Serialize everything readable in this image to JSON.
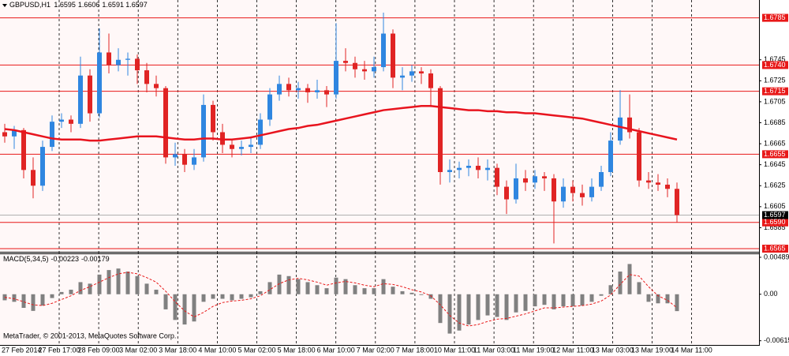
{
  "chart_data": [
    {
      "type": "candlestick",
      "title": "GBPUSD,H1",
      "header_values": [
        1.6595,
        1.6606,
        1.6591,
        1.6597
      ],
      "annotation": "MetaTrader, © 2001-2013, MetaQuotes Software Corp.",
      "time_labels": [
        "27 Feb 2014",
        "27 Feb 17:00",
        "28 Feb 09:00",
        "3 Mar 02:00",
        "3 Mar 18:00",
        "4 Mar 10:00",
        "5 Mar 02:00",
        "5 Mar 18:00",
        "6 Mar 10:00",
        "7 Mar 02:00",
        "7 Mar 18:00",
        "10 Mar 11:00",
        "11 Mar 03:00",
        "11 Mar 19:00",
        "12 Mar 11:00",
        "13 Mar 03:00",
        "13 Mar 19:00",
        "14 Mar 11:00"
      ],
      "open": [
        1.6676,
        1.6672,
        1.6678,
        1.664,
        1.6625,
        1.6662,
        1.6686,
        1.6688,
        1.6684,
        1.673,
        1.6694,
        1.6752,
        1.674,
        1.6745,
        1.6746,
        1.6735,
        1.6722,
        1.6718,
        1.6652,
        1.6655,
        1.6645,
        1.6652,
        1.6702,
        1.6676,
        1.6664,
        1.666,
        1.6662,
        1.6664,
        1.6688,
        1.6712,
        1.6722,
        1.6716,
        1.6718,
        1.6714,
        1.6716,
        1.6712,
        1.6744,
        1.6742,
        1.6736,
        1.6734,
        1.6738,
        1.677,
        1.6728,
        1.673,
        1.6734,
        1.6732,
        1.6718,
        1.6638,
        1.664,
        1.6642,
        1.6644,
        1.664,
        1.6642,
        1.6624,
        1.6612,
        1.6632,
        1.6628,
        1.6634,
        1.6632,
        1.661,
        1.6624,
        1.6618,
        1.6614,
        1.6624,
        1.6638,
        1.6668,
        1.669,
        1.6676,
        1.663,
        1.6628,
        1.6626,
        1.6622
      ],
      "high": [
        1.6684,
        1.6682,
        1.668,
        1.6652,
        1.6668,
        1.6692,
        1.6694,
        1.6692,
        1.6748,
        1.6736,
        1.6775,
        1.677,
        1.6756,
        1.6752,
        1.675,
        1.6742,
        1.673,
        1.672,
        1.6666,
        1.666,
        1.666,
        1.6712,
        1.6706,
        1.6684,
        1.667,
        1.6668,
        1.6672,
        1.6694,
        1.6718,
        1.673,
        1.6728,
        1.6724,
        1.6722,
        1.6726,
        1.672,
        1.678,
        1.6756,
        1.6748,
        1.6744,
        1.6748,
        1.679,
        1.6774,
        1.6738,
        1.674,
        1.6738,
        1.6736,
        1.672,
        1.665,
        1.6648,
        1.665,
        1.6652,
        1.665,
        1.6646,
        1.663,
        1.6646,
        1.664,
        1.664,
        1.6638,
        1.6636,
        1.6632,
        1.663,
        1.6626,
        1.6632,
        1.6644,
        1.6676,
        1.6716,
        1.6712,
        1.668,
        1.6638,
        1.6636,
        1.6632,
        1.6628
      ],
      "low": [
        1.6666,
        1.666,
        1.6632,
        1.6613,
        1.662,
        1.6658,
        1.668,
        1.6676,
        1.668,
        1.6686,
        1.669,
        1.6732,
        1.6734,
        1.673,
        1.6722,
        1.6714,
        1.671,
        1.6646,
        1.6644,
        1.6638,
        1.664,
        1.6648,
        1.6668,
        1.6656,
        1.6652,
        1.6654,
        1.6656,
        1.666,
        1.6682,
        1.6706,
        1.671,
        1.6708,
        1.6704,
        1.6708,
        1.67,
        1.6708,
        1.6734,
        1.6728,
        1.6726,
        1.6728,
        1.6734,
        1.6718,
        1.6716,
        1.6724,
        1.6722,
        1.67,
        1.6626,
        1.6628,
        1.6632,
        1.6634,
        1.6632,
        1.663,
        1.6616,
        1.6598,
        1.6608,
        1.662,
        1.6622,
        1.662,
        1.657,
        1.6604,
        1.661,
        1.6606,
        1.661,
        1.662,
        1.6634,
        1.6664,
        1.667,
        1.6624,
        1.6622,
        1.662,
        1.6614,
        1.659
      ],
      "close": [
        1.6672,
        1.6678,
        1.664,
        1.6625,
        1.6662,
        1.6686,
        1.6688,
        1.6684,
        1.673,
        1.6694,
        1.6752,
        1.674,
        1.6745,
        1.6746,
        1.6735,
        1.6722,
        1.6718,
        1.6652,
        1.6655,
        1.6645,
        1.6652,
        1.6702,
        1.6676,
        1.6664,
        1.666,
        1.6662,
        1.6664,
        1.6688,
        1.6712,
        1.6722,
        1.6716,
        1.6718,
        1.6714,
        1.6716,
        1.6712,
        1.6744,
        1.6742,
        1.6736,
        1.6734,
        1.6738,
        1.677,
        1.6728,
        1.673,
        1.6734,
        1.6732,
        1.6718,
        1.6638,
        1.664,
        1.6642,
        1.6644,
        1.664,
        1.6642,
        1.6624,
        1.6612,
        1.6632,
        1.6628,
        1.6634,
        1.6632,
        1.661,
        1.6624,
        1.6618,
        1.6614,
        1.6624,
        1.6638,
        1.6668,
        1.669,
        1.6676,
        1.663,
        1.6628,
        1.6626,
        1.6622,
        1.6597
      ],
      "up_color": "#2f86e0",
      "down_color": "#e02424",
      "moving_average": {
        "color": "#e8141e",
        "values": [
          1.6679,
          1.6678,
          1.6676,
          1.6674,
          1.6672,
          1.667,
          1.6669,
          1.6669,
          1.6669,
          1.6668,
          1.6668,
          1.6669,
          1.667,
          1.6671,
          1.6672,
          1.6672,
          1.6672,
          1.6671,
          1.667,
          1.6669,
          1.6669,
          1.667,
          1.667,
          1.6669,
          1.6669,
          1.667,
          1.6671,
          1.6673,
          1.6675,
          1.6677,
          1.6679,
          1.668,
          1.6682,
          1.6683,
          1.6685,
          1.6687,
          1.6689,
          1.6691,
          1.6693,
          1.6695,
          1.6697,
          1.6698,
          1.6699,
          1.67,
          1.6701,
          1.6701,
          1.67,
          1.6699,
          1.6698,
          1.6697,
          1.6697,
          1.6696,
          1.6696,
          1.6695,
          1.6695,
          1.6694,
          1.6694,
          1.6693,
          1.6692,
          1.6691,
          1.669,
          1.6689,
          1.6687,
          1.6685,
          1.6683,
          1.6681,
          1.6679,
          1.6677,
          1.6675,
          1.6673,
          1.6671,
          1.6669
        ]
      },
      "levels": [
        1.6785,
        {
          "value": 1.674,
          "label": "1.6740"
        },
        1.6715,
        1.6655,
        {
          "value": 1.659,
          "label": "1.6590"
        },
        1.6565
      ],
      "level_color": "#e81818",
      "current_price": 1.6597,
      "ylim": [
        1.6562,
        1.6802
      ],
      "yticks": [
        1.6745,
        1.6725,
        1.6705,
        1.6685,
        1.6665,
        1.6645,
        1.6625,
        1.6605,
        1.6585
      ]
    },
    {
      "type": "macd",
      "title": "MACD(5,34,5)",
      "header_values": [
        -0.00223,
        -0.00179
      ],
      "histogram": {
        "color": "#808080",
        "values": [
          -0.0008,
          -0.001,
          -0.0018,
          -0.0022,
          -0.0015,
          -0.0005,
          0.0003,
          0.0006,
          0.0016,
          0.0014,
          0.0026,
          0.0032,
          0.0034,
          0.003,
          0.0024,
          0.0014,
          0.0006,
          -0.002,
          -0.0034,
          -0.004,
          -0.0036,
          -0.001,
          -0.0006,
          -0.0006,
          -0.0008,
          -0.0006,
          -0.0004,
          0.0004,
          0.0016,
          0.0026,
          0.0024,
          0.002,
          0.0016,
          0.0012,
          0.0008,
          0.0022,
          0.002,
          0.0012,
          0.0008,
          0.0008,
          0.002,
          0.001,
          0.0004,
          0.0002,
          -0.0001,
          -0.0006,
          -0.0038,
          -0.0052,
          -0.0048,
          -0.004,
          -0.0034,
          -0.0028,
          -0.003,
          -0.0034,
          -0.0024,
          -0.0022,
          -0.0016,
          -0.0014,
          -0.002,
          -0.0016,
          -0.0016,
          -0.0015,
          -0.001,
          -0.0002,
          0.0012,
          0.003,
          0.004,
          0.0016,
          -0.001,
          -0.0012,
          -0.0012,
          -0.00223
        ]
      },
      "signal": {
        "color": "#e81818",
        "values": [
          -0.0004,
          -0.0006,
          -0.001,
          -0.0014,
          -0.0015,
          -0.0012,
          -0.0007,
          -0.0002,
          0.0005,
          0.001,
          0.0016,
          0.0022,
          0.0027,
          0.0029,
          0.0027,
          0.0022,
          0.0016,
          0.0004,
          -0.001,
          -0.0022,
          -0.003,
          -0.0024,
          -0.0016,
          -0.0011,
          -0.0009,
          -0.0008,
          -0.0006,
          -0.0002,
          0.0006,
          0.0014,
          0.0019,
          0.0021,
          0.0019,
          0.0016,
          0.0012,
          0.0015,
          0.0017,
          0.0015,
          0.0012,
          0.001,
          0.0014,
          0.0013,
          0.001,
          0.0006,
          0.0003,
          -0.0002,
          -0.0014,
          -0.0028,
          -0.0038,
          -0.0042,
          -0.004,
          -0.0036,
          -0.0033,
          -0.0032,
          -0.0029,
          -0.0026,
          -0.0022,
          -0.0018,
          -0.0018,
          -0.0017,
          -0.0016,
          -0.0015,
          -0.0013,
          -0.0009,
          -0.0001,
          0.0013,
          0.0026,
          0.0024,
          0.001,
          -0.0002,
          -0.0008,
          -0.00179
        ]
      },
      "ylim": [
        -0.0066,
        0.0053
      ],
      "yticks": [
        0.00489,
        {
          "value": 0,
          "label": "0.00"
        },
        -0.00615
      ]
    }
  ]
}
